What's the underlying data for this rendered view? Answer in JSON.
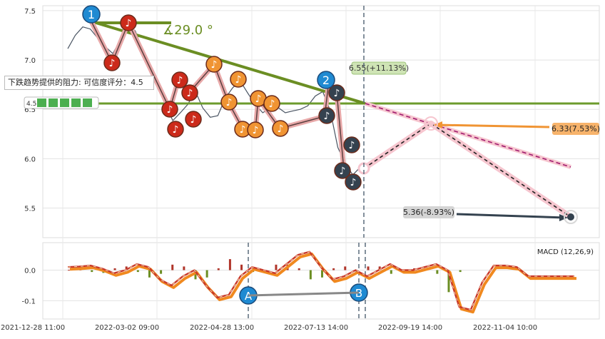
{
  "chart_data": [
    {
      "type": "line",
      "panel": "price",
      "y_ticks": [
        "7.5",
        "7.0",
        "6.5",
        "6.0",
        "5.5"
      ],
      "ylim": [
        5.2,
        7.55
      ],
      "grid": true,
      "price_series": [
        7.1,
        7.25,
        7.35,
        7.3,
        7.22,
        7.15,
        7.05,
        7.2,
        7.38,
        7.28,
        7.1,
        6.9,
        6.7,
        6.55,
        6.4,
        6.45,
        6.55,
        6.7,
        6.5,
        6.42,
        6.45,
        6.6,
        6.72,
        6.8,
        6.65,
        6.55,
        6.48,
        6.5,
        6.52,
        6.48,
        6.47,
        6.5,
        6.55,
        6.62,
        6.68,
        6.5,
        6.1,
        5.95,
        5.85,
        5.9
      ],
      "annotations": {
        "angle_label": "∡29.0 °",
        "resistance_note": "下跌趋势提供的阻力: 可信度评分：4.5",
        "resistance_level_label": "4.5",
        "upper_target_label": "6.55(+11.13%)",
        "mid_target_label": "6.33(7.53%)",
        "low_target_label": "5.36(-8.93%)",
        "point_1": "1",
        "point_2": "2",
        "note_glyph": "♪"
      }
    },
    {
      "type": "line",
      "panel": "macd",
      "title": "MACD (12,26,9)",
      "y_ticks": [
        "0.0",
        "-0.1"
      ],
      "ylim": [
        -0.16,
        0.09
      ],
      "macd_series": [
        0.01,
        0.012,
        0.015,
        0.005,
        -0.01,
        0.0,
        0.02,
        0.01,
        -0.03,
        -0.05,
        -0.02,
        0.0,
        -0.05,
        -0.09,
        -0.08,
        -0.02,
        0.01,
        0.0,
        -0.01,
        0.02,
        0.05,
        0.06,
        0.01,
        -0.03,
        -0.02,
        0.0,
        -0.02,
        0.0,
        0.02,
        0.0,
        0.0,
        0.01,
        0.02,
        0.0,
        -0.12,
        -0.13,
        -0.04,
        0.015,
        0.015,
        0.01,
        -0.02,
        -0.02,
        -0.02,
        -0.02,
        -0.02
      ],
      "marker_a": "A",
      "marker_b": "B"
    }
  ],
  "x_ticks": [
    "2021-12-28 11:00",
    "2022-03-02 09:00",
    "2022-04-28 13:00",
    "2022-07-13 14:00",
    "2022-09-19 14:00",
    "2022-11-04 10:00"
  ],
  "colors": {
    "trend_green": "#6b8e23",
    "resistance_green": "#6c9b2c",
    "red_marker": "#cc2a1a",
    "orange_marker": "#f09433",
    "dark_marker": "#34424f",
    "blue_marker": "#1f8ad2",
    "projection_pink": "#f2b5c0",
    "macd_orange": "#f0891f",
    "macd_red": "#c8382a"
  }
}
